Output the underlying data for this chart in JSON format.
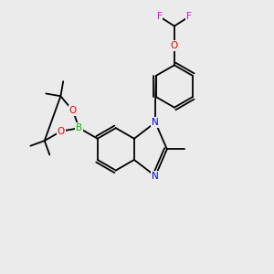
{
  "background_color": "#ebebeb",
  "atom_colors": {
    "C": "#000000",
    "N": "#0000ee",
    "O": "#ee0000",
    "B": "#00bb00",
    "F": "#ee00ee"
  },
  "bond_color": "#000000",
  "figsize": [
    3.0,
    3.0
  ],
  "dpi": 100,
  "lw": 1.3,
  "fontsize": 7.5
}
